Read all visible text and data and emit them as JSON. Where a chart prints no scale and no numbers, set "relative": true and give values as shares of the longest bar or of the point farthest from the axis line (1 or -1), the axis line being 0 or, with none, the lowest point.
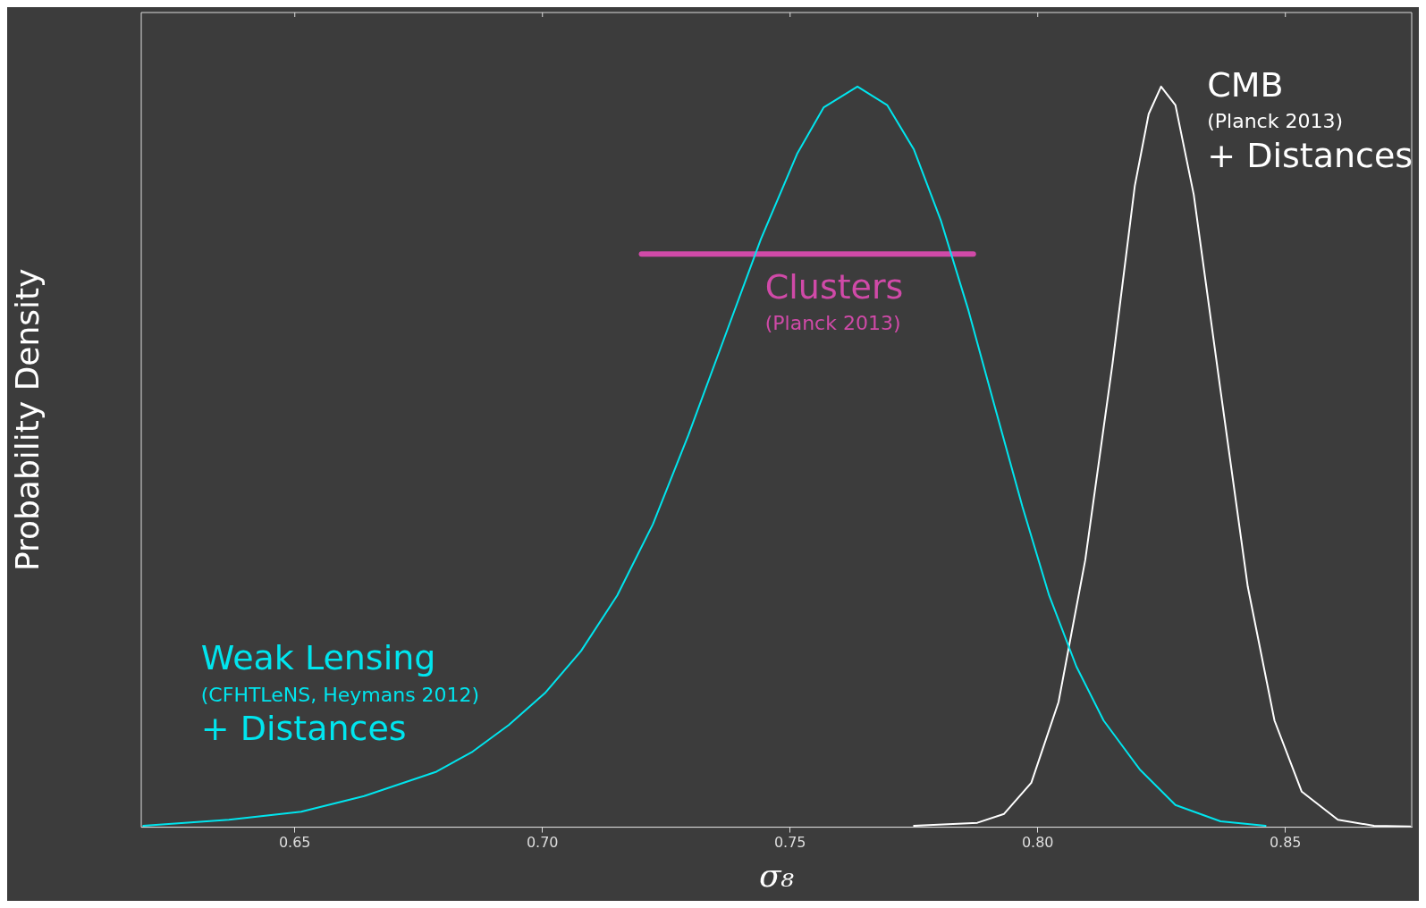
{
  "chart_data": {
    "type": "line",
    "xlabel": "σ₈",
    "ylabel": "Probability Density",
    "relative": true,
    "grid": false,
    "legend": false,
    "marker": "none",
    "line_style": "solid",
    "xlim": [
      0.619,
      0.8755
    ],
    "xticks": [
      {
        "value": 0.65,
        "label": "0.65"
      },
      {
        "value": 0.7,
        "label": "0.70"
      },
      {
        "value": 0.75,
        "label": "0.75"
      },
      {
        "value": 0.8,
        "label": "0.80"
      },
      {
        "value": 0.85,
        "label": "0.85"
      }
    ],
    "series": [
      {
        "color": "#00e5ee",
        "x": [
          0.6194,
          0.6367,
          0.6513,
          0.664,
          0.6786,
          0.6859,
          0.6932,
          0.7005,
          0.7078,
          0.7151,
          0.7223,
          0.7295,
          0.7368,
          0.7441,
          0.7514,
          0.7568,
          0.7636,
          0.7696,
          0.775,
          0.7805,
          0.786,
          0.7914,
          0.7969,
          0.8023,
          0.8078,
          0.8133,
          0.8206,
          0.8278,
          0.8369,
          0.846
        ],
        "values": [
          0.002,
          0.01,
          0.021,
          0.042,
          0.075,
          0.102,
          0.138,
          0.181,
          0.238,
          0.313,
          0.409,
          0.53,
          0.662,
          0.794,
          0.909,
          0.972,
          1.0,
          0.975,
          0.915,
          0.818,
          0.698,
          0.566,
          0.433,
          0.313,
          0.217,
          0.144,
          0.078,
          0.03,
          0.008,
          0.002
        ]
      },
      {
        "color": "#ffffff",
        "x": [
          0.775,
          0.7878,
          0.7932,
          0.7987,
          0.8042,
          0.8096,
          0.8151,
          0.8196,
          0.8224,
          0.8249,
          0.8278,
          0.8315,
          0.8369,
          0.8424,
          0.8478,
          0.8533,
          0.8606,
          0.8679,
          0.8752
        ],
        "values": [
          0.002,
          0.006,
          0.018,
          0.06,
          0.169,
          0.361,
          0.626,
          0.866,
          0.963,
          1.0,
          0.975,
          0.854,
          0.59,
          0.325,
          0.144,
          0.048,
          0.01,
          0.002,
          0.001
        ]
      },
      {
        "color": "#d04aa8",
        "x": [
          0.72,
          0.787
        ],
        "values": [
          0.774,
          0.774
        ]
      }
    ],
    "annotations": [
      "Weak Lensing\n(CFHTLeNS, Heymans 2012)\n+ Distances",
      "CMB\n(Planck 2013)\n+ Distances",
      "Clusters\n(Planck 2013)"
    ]
  }
}
